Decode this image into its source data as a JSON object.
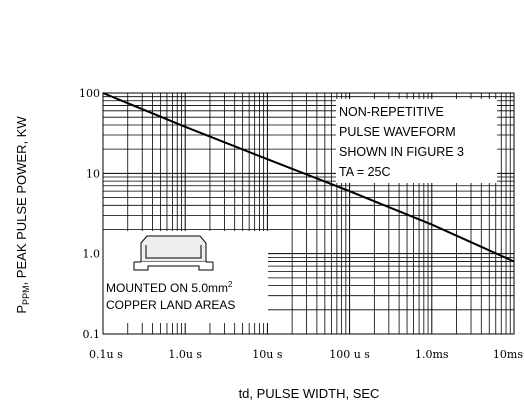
{
  "chart_data": {
    "type": "line",
    "x_scale": "log",
    "y_scale": "log",
    "xlim": [
      0.1,
      10000
    ],
    "ylim": [
      0.1,
      100
    ],
    "grid": true,
    "xlabel": "td, PULSE WIDTH, SEC",
    "ylabel_main": "P",
    "ylabel_sub": "PPM",
    "ylabel_rest": ", PEAK PULSE POWER, KW",
    "x_ticks": [
      {
        "value": 0.1,
        "label": "0.1u s"
      },
      {
        "value": 1,
        "label": "1.0u s"
      },
      {
        "value": 10,
        "label": "10u s"
      },
      {
        "value": 100,
        "label": "100 u s"
      },
      {
        "value": 1000,
        "label": "1.0ms"
      },
      {
        "value": 10000,
        "label": "10ms"
      }
    ],
    "y_ticks": [
      {
        "value": 100,
        "label": "100"
      },
      {
        "value": 10,
        "label": "10"
      },
      {
        "value": 1,
        "label": "1.0"
      },
      {
        "value": 0.1,
        "label": "0.1"
      }
    ],
    "series": [
      {
        "x": [
          0.1,
          1,
          10,
          100,
          1000,
          10000
        ],
        "y": [
          100,
          38,
          15,
          6.0,
          2.3,
          0.8
        ]
      }
    ],
    "annotations": {
      "waveform": [
        "NON-REPETITIVE",
        "PULSE WAVEFORM",
        "SHOWN IN FIGURE 3",
        "TA = 25C"
      ],
      "mounting_line1_main": "MOUNTED ON 5.0mm",
      "mounting_line1_sup": "2",
      "mounting_line2": "COPPER LAND AREAS"
    }
  }
}
